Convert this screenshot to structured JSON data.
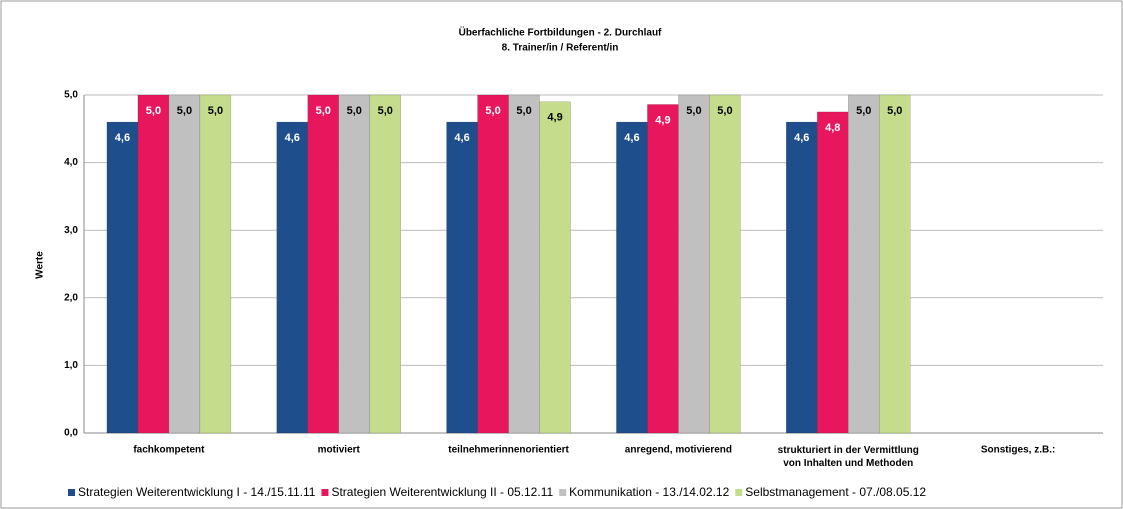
{
  "chart_data": {
    "type": "bar",
    "title": "Überfachliche Fortbildungen - 2. Durchlauf",
    "subtitle": "8. Trainer/in / Referent/in",
    "y_label": "Werte",
    "categories": [
      "fachkompetent",
      "motiviert",
      "teilnehmerinnenorientiert",
      "anregend, motivierend",
      "strukturiert in der Vermittlung\nvon Inhalten und Methoden",
      "Sonstiges, z.B.:"
    ],
    "series": [
      {
        "name": "Strategien Weiterentwicklung I - 14./15.11.11",
        "color": "#1f4e8c",
        "values": [
          4.6,
          4.6,
          4.6,
          4.6,
          4.6,
          null
        ],
        "value_labels": [
          "4,6",
          "4,6",
          "4,6",
          "4,6",
          "4,6",
          null
        ]
      },
      {
        "name": "Strategien Weiterentwicklung II - 05.12.11",
        "color": "#e8175d",
        "values": [
          5.0,
          5.0,
          5.0,
          4.86,
          4.75,
          null
        ],
        "value_labels": [
          "5,0",
          "5,0",
          "5,0",
          "4,9",
          "4,8",
          null
        ]
      },
      {
        "name": "Kommunikation - 13./14.02.12",
        "color": "#c0c0c0",
        "values": [
          5.0,
          5.0,
          5.0,
          5.0,
          5.0,
          null
        ],
        "value_labels": [
          "5,0",
          "5,0",
          "5,0",
          "5,0",
          "5,0",
          null
        ]
      },
      {
        "name": "Selbstmanagement - 07./08.05.12",
        "color": "#c5dc8c",
        "values": [
          5.0,
          5.0,
          4.9,
          5.0,
          5.0,
          null
        ],
        "value_labels": [
          "5,0",
          "5,0",
          "4,9",
          "5,0",
          "5,0",
          null
        ]
      }
    ],
    "ylim": [
      0,
      5
    ],
    "yticks": [
      {
        "value": 0,
        "label": "0,0"
      },
      {
        "value": 1,
        "label": "1,0"
      },
      {
        "value": 2,
        "label": "2,0"
      },
      {
        "value": 3,
        "label": "3,0"
      },
      {
        "value": 4,
        "label": "4,0"
      },
      {
        "value": 5,
        "label": "5,0"
      }
    ],
    "grid": true,
    "legend": "bottom"
  }
}
